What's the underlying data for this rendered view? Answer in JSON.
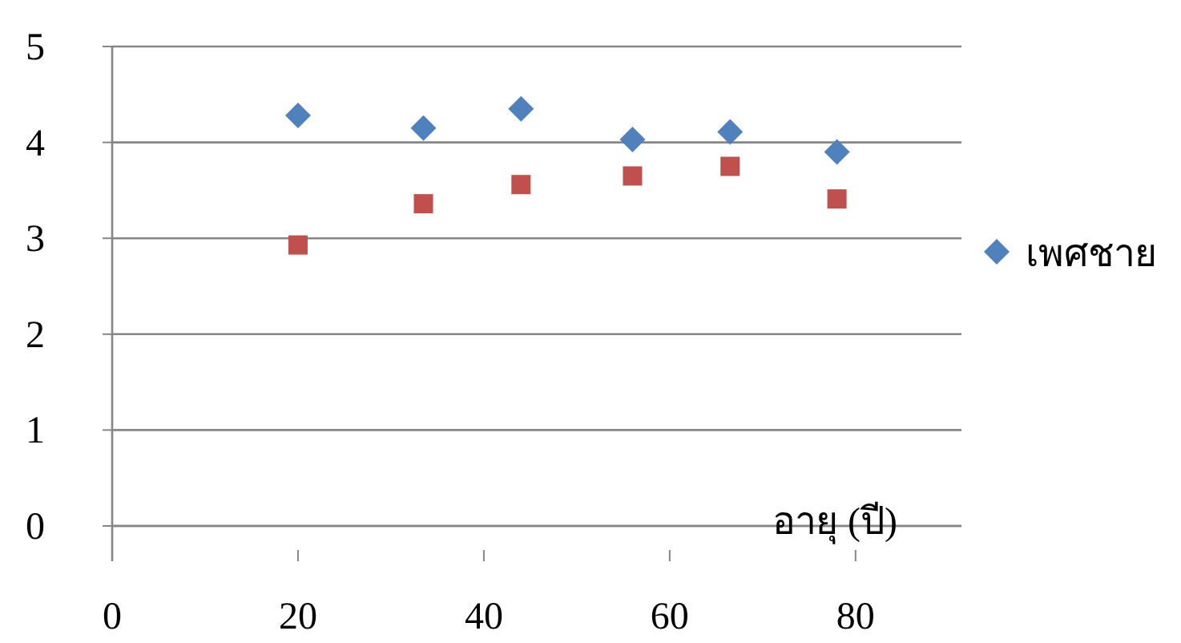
{
  "chart_data": {
    "type": "scatter",
    "xlabel": "อายุ (ปี)",
    "xlim": [
      0,
      91.4
    ],
    "xticks": [
      0,
      20,
      40,
      60,
      80
    ],
    "ylim": [
      0,
      5
    ],
    "yticks": [
      0,
      1,
      2,
      3,
      4,
      5
    ],
    "grid": "y",
    "legend": "right",
    "series": [
      {
        "name": "เพศชาย",
        "color": "#4f81bd",
        "marker": "diamond",
        "x": [
          20,
          33.5,
          44,
          56,
          66.5,
          78
        ],
        "values": [
          4.28,
          4.15,
          4.35,
          4.03,
          4.11,
          3.9
        ]
      },
      {
        "color": "#c0504d",
        "marker": "square",
        "x": [
          20,
          33.5,
          44,
          56,
          66.5,
          78
        ],
        "values": [
          2.93,
          3.36,
          3.56,
          3.65,
          3.75,
          3.41
        ]
      }
    ]
  }
}
